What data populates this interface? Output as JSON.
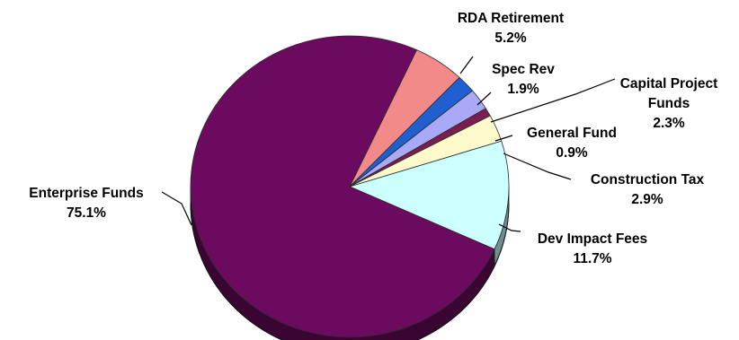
{
  "chart_data": {
    "type": "pie",
    "title": "",
    "unit": "%",
    "slices": [
      {
        "name": "RDA Retirement",
        "label_lines": [
          "RDA Retirement",
          "5.2%"
        ],
        "value": 5.2,
        "color": "#F28A8A",
        "side_color": "#9C4E4E"
      },
      {
        "name": "Spec Rev",
        "label_lines": [
          "Spec Rev",
          "1.9%"
        ],
        "value": 1.9,
        "color": "#1F5FD0",
        "side_color": "#123A80"
      },
      {
        "name": "Capital Project Funds",
        "label_lines": [
          "Capital Project",
          "Funds",
          "2.3%"
        ],
        "value": 2.3,
        "color": "#A9A9F7",
        "side_color": "#6464A4"
      },
      {
        "name": "General Fund",
        "label_lines": [
          "General Fund",
          "0.9%"
        ],
        "value": 0.9,
        "color": "#7A1E4F",
        "side_color": "#4A1030"
      },
      {
        "name": "Construction Tax",
        "label_lines": [
          "Construction Tax",
          "2.9%"
        ],
        "value": 2.9,
        "color": "#FFFACC",
        "side_color": "#A6A37A"
      },
      {
        "name": "Dev Impact Fees",
        "label_lines": [
          "Dev Impact Fees",
          "11.7%"
        ],
        "value": 11.7,
        "color": "#CCFFFF",
        "side_color": "#6F8F8F"
      },
      {
        "name": "Enterprise Funds",
        "label_lines": [
          "Enterprise Funds",
          "75.1%"
        ],
        "value": 75.1,
        "color": "#6B0A5E",
        "side_color": "#3A0533"
      }
    ],
    "legend": "none",
    "labels": "outside with leader lines"
  }
}
